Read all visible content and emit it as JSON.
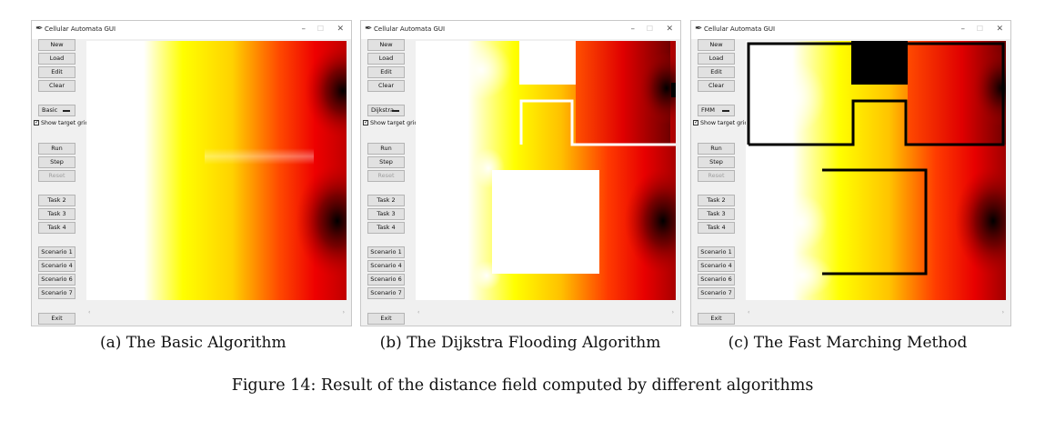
{
  "windows": [
    {
      "title": "Cellular Automata GUI",
      "buttons": {
        "new": "New",
        "load": "Load",
        "edit": "Edit",
        "clear": "Clear",
        "run": "Run",
        "step": "Step",
        "reset": "Reset",
        "task2": "Task 2",
        "task3": "Task 3",
        "task4": "Task 4",
        "scenario1": "Scenario 1",
        "scenario4": "Scenario 4",
        "scenario6": "Scenario 6",
        "scenario7": "Scenario 7",
        "exit": "Exit"
      },
      "algorithm": "Basic",
      "show_target_grid": {
        "label": "Show target grid",
        "checked": true
      },
      "caption": "(a) The Basic Algorithm"
    },
    {
      "title": "Cellular Automata GUI",
      "buttons": {
        "new": "New",
        "load": "Load",
        "edit": "Edit",
        "clear": "Clear",
        "run": "Run",
        "step": "Step",
        "reset": "Reset",
        "task2": "Task 2",
        "task3": "Task 3",
        "task4": "Task 4",
        "scenario1": "Scenario 1",
        "scenario4": "Scenario 4",
        "scenario6": "Scenario 6",
        "scenario7": "Scenario 7",
        "exit": "Exit"
      },
      "algorithm": "Dijkstra",
      "show_target_grid": {
        "label": "Show target grid",
        "checked": true
      },
      "caption": "(b) The Dijkstra Flooding Algorithm"
    },
    {
      "title": "Cellular Automata GUI",
      "buttons": {
        "new": "New",
        "load": "Load",
        "edit": "Edit",
        "clear": "Clear",
        "run": "Run",
        "step": "Step",
        "reset": "Reset",
        "task2": "Task 2",
        "task3": "Task 3",
        "task4": "Task 4",
        "scenario1": "Scenario 1",
        "scenario4": "Scenario 4",
        "scenario6": "Scenario 6",
        "scenario7": "Scenario 7",
        "exit": "Exit"
      },
      "algorithm": "FMM",
      "show_target_grid": {
        "label": "Show target grid",
        "checked": true
      },
      "caption": "(c) The Fast Marching Method"
    }
  ],
  "figure_caption": "Figure 14: Result of the distance field computed by different algorithms",
  "colors": {
    "heat_white": "#ffffff",
    "heat_yellow": "#ffff00",
    "heat_red": "#ff0000",
    "heat_black": "#000000",
    "wall": "#000000"
  }
}
